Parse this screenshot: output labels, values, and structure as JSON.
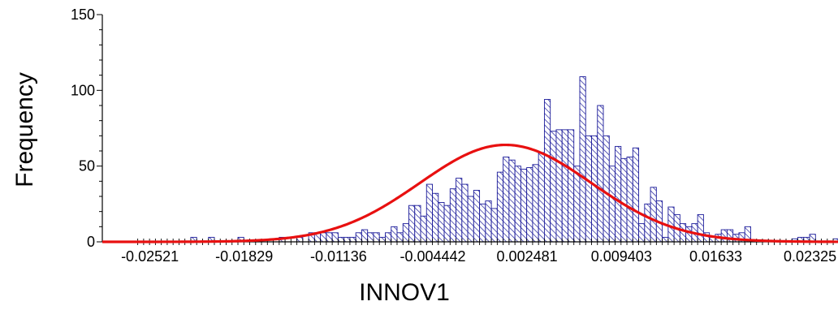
{
  "chart_data": {
    "type": "bar",
    "subtype": "histogram-with-normal-fit",
    "title": "",
    "xlabel": "INNOV1",
    "ylabel": "Frequency",
    "xlim": [
      -0.0287,
      0.0253
    ],
    "ylim": [
      0,
      150
    ],
    "yticks": [
      0,
      50,
      100,
      150
    ],
    "xtick_labels": [
      "-0.02521",
      "-0.01829",
      "-0.01136",
      "-0.004442",
      "0.002481",
      "0.009403",
      "0.01633",
      "0.02325"
    ],
    "bin_width": 0.0004326,
    "bin_start": -0.0261,
    "counts": [
      0,
      0,
      0,
      0,
      0,
      0,
      0,
      0,
      0,
      3,
      0,
      0,
      3,
      0,
      0,
      0,
      0,
      3,
      0,
      0,
      0,
      0,
      0,
      0,
      3,
      0,
      0,
      3,
      0,
      6,
      6,
      6,
      6,
      6,
      3,
      3,
      3,
      6,
      8,
      6,
      6,
      3,
      6,
      10,
      6,
      12,
      24,
      24,
      17,
      38,
      32,
      26,
      24,
      35,
      42,
      38,
      30,
      34,
      25,
      27,
      22,
      46,
      56,
      54,
      50,
      48,
      49,
      51,
      59,
      94,
      73,
      74,
      74,
      74,
      50,
      109,
      70,
      70,
      90,
      70,
      50,
      63,
      55,
      56,
      62,
      12,
      25,
      36,
      27,
      3,
      23,
      18,
      12,
      10,
      12,
      18,
      6,
      3,
      5,
      8,
      8,
      5,
      6,
      10,
      0,
      0,
      0,
      0,
      0,
      0,
      0,
      2,
      3,
      3,
      5,
      0,
      0,
      0,
      2,
      0,
      0,
      0,
      0,
      3,
      0,
      0,
      0,
      0,
      0,
      0,
      0,
      0,
      0,
      0,
      3
    ],
    "fit_curve": {
      "type": "normal",
      "mean": 0.0009,
      "sd": 0.0063,
      "peak": 64
    },
    "bar_fill": "#ffffff",
    "bar_hatch_color": "#1b1b9a",
    "bar_edge_color": "#1b1b9a",
    "curve_color": "#e81010",
    "grid": false,
    "legend": "none"
  }
}
